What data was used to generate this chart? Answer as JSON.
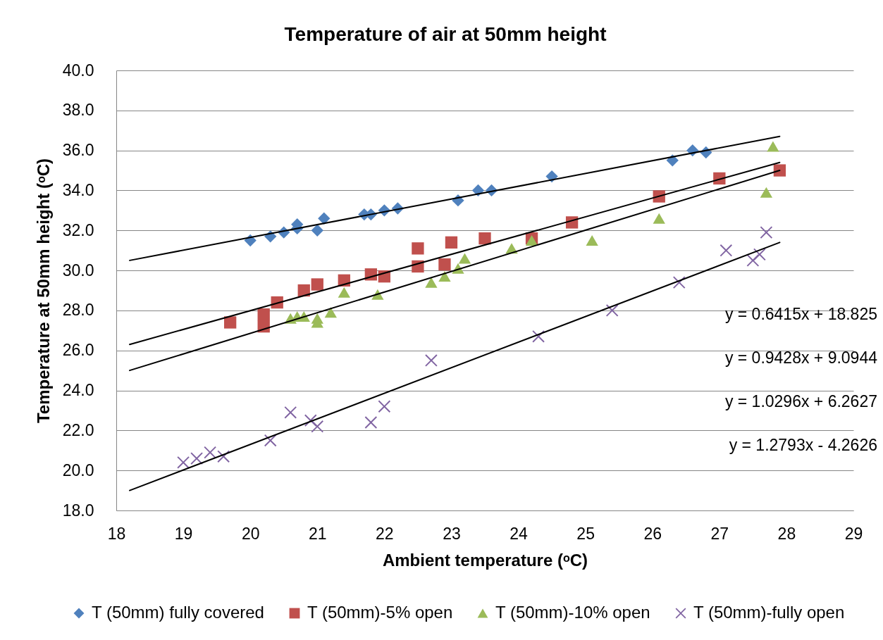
{
  "chart_data": {
    "type": "scatter",
    "title": "Temperature of air at 50mm height",
    "xlabel": "Ambient temperature (ᵒC)",
    "ylabel": "Temperature at 50mm height  (ᵒC)",
    "xlim": [
      18,
      29
    ],
    "xticks": [
      18,
      19,
      20,
      21,
      22,
      23,
      24,
      25,
      26,
      27,
      28,
      29
    ],
    "ylim": [
      18,
      40
    ],
    "yticks": [
      {
        "value": 18,
        "label": "18.0"
      },
      {
        "value": 20,
        "label": "20.0"
      },
      {
        "value": 22,
        "label": "22.0"
      },
      {
        "value": 24,
        "label": "24.0"
      },
      {
        "value": 26,
        "label": "26.0"
      },
      {
        "value": 28,
        "label": "28.0"
      },
      {
        "value": 30,
        "label": "30.0"
      },
      {
        "value": 32,
        "label": "32.0"
      },
      {
        "value": 34,
        "label": "34.0"
      },
      {
        "value": 36,
        "label": "36.0"
      },
      {
        "value": 38,
        "label": "38.0"
      },
      {
        "value": 40,
        "label": "40.0"
      }
    ],
    "grid": "y",
    "legend": "bottom",
    "annotations": [
      "y = 0.6415x + 18.825",
      "y = 0.9428x + 9.0944",
      "y = 1.0296x + 6.2627",
      "y = 1.2793x - 4.2626"
    ],
    "series": [
      {
        "name": "T (50mm) fully covered",
        "color": "#4f81bd",
        "marker": "diamond",
        "x": [
          20.0,
          20.3,
          20.5,
          20.7,
          20.7,
          21.0,
          21.1,
          21.7,
          21.8,
          22.0,
          22.2,
          23.1,
          23.4,
          23.6,
          24.5,
          26.3,
          26.6,
          26.8
        ],
        "values": [
          31.5,
          31.7,
          31.9,
          32.3,
          32.1,
          32.0,
          32.6,
          32.8,
          32.8,
          33.0,
          33.1,
          33.5,
          34.0,
          34.0,
          34.7,
          35.5,
          36.0,
          35.9
        ]
      },
      {
        "name": "T (50mm)-5% open",
        "color": "#c0504d",
        "marker": "square",
        "x": [
          19.7,
          20.2,
          20.2,
          20.4,
          20.8,
          21.0,
          21.4,
          21.8,
          22.0,
          22.5,
          22.5,
          22.9,
          23.0,
          23.5,
          24.2,
          24.8,
          26.1,
          27.0,
          27.9
        ],
        "values": [
          27.4,
          27.8,
          27.2,
          28.4,
          29.0,
          29.3,
          29.5,
          29.8,
          29.7,
          31.1,
          30.2,
          30.3,
          31.4,
          31.6,
          31.6,
          32.4,
          33.7,
          34.6,
          35.0
        ]
      },
      {
        "name": "T (50mm)-10% open",
        "color": "#9bbb59",
        "marker": "triangle",
        "x": [
          20.6,
          20.7,
          20.8,
          21.0,
          21.0,
          21.2,
          21.4,
          21.9,
          22.7,
          22.9,
          23.1,
          23.2,
          23.9,
          24.2,
          25.1,
          26.1,
          27.7,
          27.8
        ],
        "values": [
          27.6,
          27.7,
          27.7,
          27.6,
          27.4,
          27.9,
          28.9,
          28.8,
          29.4,
          29.7,
          30.1,
          30.6,
          31.1,
          31.5,
          31.5,
          32.6,
          33.9,
          36.2
        ]
      },
      {
        "name": "T (50mm)-fully open",
        "color": "#8064a2",
        "marker": "cross",
        "x": [
          19.0,
          19.2,
          19.4,
          19.6,
          20.3,
          20.6,
          20.9,
          21.0,
          21.8,
          22.0,
          22.7,
          24.3,
          25.4,
          26.4,
          27.1,
          27.5,
          27.6,
          27.7
        ],
        "values": [
          20.4,
          20.6,
          20.9,
          20.7,
          21.5,
          22.9,
          22.5,
          22.2,
          22.4,
          23.2,
          25.5,
          26.7,
          28.0,
          29.4,
          31.0,
          30.5,
          30.8,
          31.9
        ]
      },
      {
        "type": "line",
        "color": "#000000",
        "x": [
          18.2,
          27.9
        ],
        "values": [
          30.5,
          36.7
        ]
      },
      {
        "type": "line",
        "color": "#000000",
        "x": [
          18.2,
          27.9
        ],
        "values": [
          26.3,
          35.4
        ]
      },
      {
        "type": "line",
        "color": "#000000",
        "x": [
          18.2,
          27.9
        ],
        "values": [
          25.0,
          35.0
        ]
      },
      {
        "type": "line",
        "color": "#000000",
        "x": [
          18.2,
          27.9
        ],
        "values": [
          19.0,
          31.4
        ]
      }
    ]
  }
}
